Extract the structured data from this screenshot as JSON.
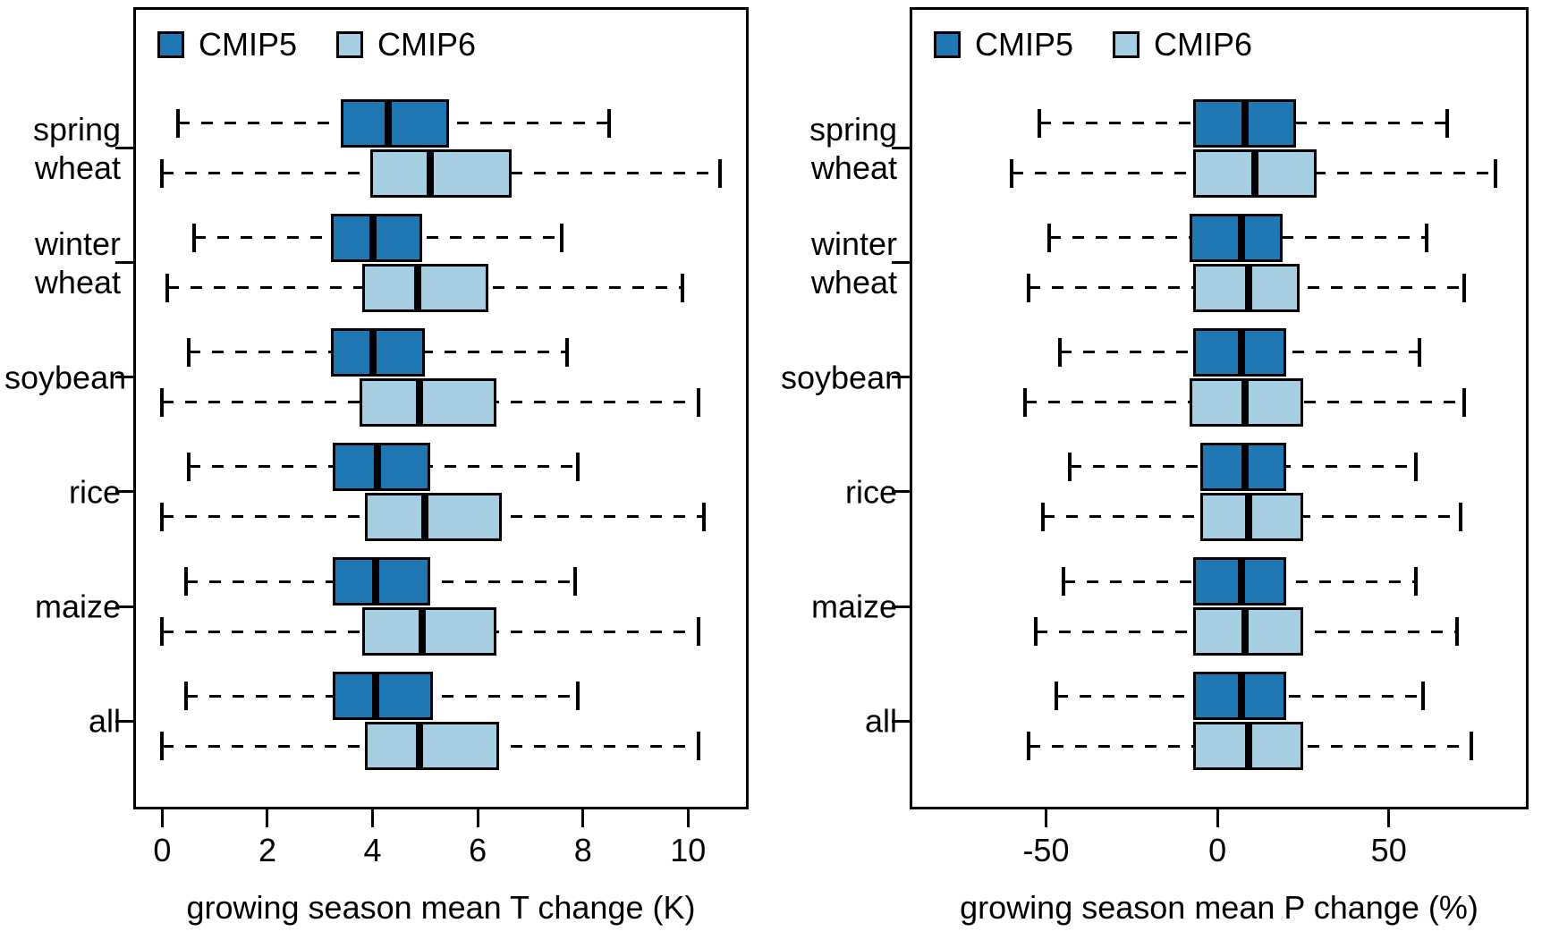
{
  "figure": {
    "legend": {
      "cmip5_label": "CMIP5",
      "cmip6_label": "CMIP6"
    },
    "colors": {
      "cmip5": "#1F78B4",
      "cmip6": "#A6CEE3",
      "line": "#000000",
      "background": "#FFFFFF"
    }
  },
  "chart_data": [
    {
      "type": "boxplot",
      "orientation": "horizontal",
      "xlabel": "growing season mean T change (K)",
      "categories": [
        "spring\nwheat",
        "winter\nwheat",
        "soybean",
        "rice",
        "maize",
        "all"
      ],
      "xlim": [
        -0.5,
        11.1
      ],
      "xticks": [
        0,
        2,
        4,
        6,
        8,
        10
      ],
      "xtick_labels": [
        "0",
        "2",
        "4",
        "6",
        "8",
        "10"
      ],
      "grid": false,
      "legend_position": "top-left",
      "series": [
        {
          "name": "CMIP5",
          "color": "#1F78B4",
          "boxes": [
            {
              "whisker_low": 0.3,
              "q1": 3.4,
              "median": 4.3,
              "q3": 5.45,
              "whisker_high": 8.5
            },
            {
              "whisker_low": 0.6,
              "q1": 3.2,
              "median": 4.0,
              "q3": 4.95,
              "whisker_high": 7.6
            },
            {
              "whisker_low": 0.5,
              "q1": 3.2,
              "median": 4.0,
              "q3": 5.0,
              "whisker_high": 7.7
            },
            {
              "whisker_low": 0.5,
              "q1": 3.25,
              "median": 4.1,
              "q3": 5.1,
              "whisker_high": 7.9
            },
            {
              "whisker_low": 0.45,
              "q1": 3.25,
              "median": 4.05,
              "q3": 5.1,
              "whisker_high": 7.85
            },
            {
              "whisker_low": 0.45,
              "q1": 3.25,
              "median": 4.05,
              "q3": 5.15,
              "whisker_high": 7.9
            }
          ]
        },
        {
          "name": "CMIP6",
          "color": "#A6CEE3",
          "boxes": [
            {
              "whisker_low": 0.0,
              "q1": 3.95,
              "median": 5.1,
              "q3": 6.65,
              "whisker_high": 10.6
            },
            {
              "whisker_low": 0.1,
              "q1": 3.8,
              "median": 4.85,
              "q3": 6.2,
              "whisker_high": 9.9
            },
            {
              "whisker_low": 0.0,
              "q1": 3.75,
              "median": 4.9,
              "q3": 6.35,
              "whisker_high": 10.2
            },
            {
              "whisker_low": 0.0,
              "q1": 3.85,
              "median": 5.0,
              "q3": 6.45,
              "whisker_high": 10.3
            },
            {
              "whisker_low": 0.0,
              "q1": 3.8,
              "median": 4.95,
              "q3": 6.35,
              "whisker_high": 10.2
            },
            {
              "whisker_low": 0.0,
              "q1": 3.85,
              "median": 4.9,
              "q3": 6.4,
              "whisker_high": 10.2
            }
          ]
        }
      ]
    },
    {
      "type": "boxplot",
      "orientation": "horizontal",
      "xlabel": "growing season mean P change (%)",
      "categories": [
        "spring\nwheat",
        "winter\nwheat",
        "soybean",
        "rice",
        "maize",
        "all"
      ],
      "xlim": [
        -89,
        90
      ],
      "xticks": [
        -50,
        0,
        50
      ],
      "xtick_labels": [
        "-50",
        "0",
        "50"
      ],
      "grid": false,
      "legend_position": "top-left",
      "series": [
        {
          "name": "CMIP5",
          "color": "#1F78B4",
          "boxes": [
            {
              "whisker_low": -52,
              "q1": -7,
              "median": 8,
              "q3": 23,
              "whisker_high": 67
            },
            {
              "whisker_low": -49,
              "q1": -8,
              "median": 7,
              "q3": 19,
              "whisker_high": 61
            },
            {
              "whisker_low": -46,
              "q1": -7,
              "median": 7,
              "q3": 20,
              "whisker_high": 59
            },
            {
              "whisker_low": -43,
              "q1": -5,
              "median": 8,
              "q3": 20,
              "whisker_high": 58
            },
            {
              "whisker_low": -45,
              "q1": -7,
              "median": 7,
              "q3": 20,
              "whisker_high": 58
            },
            {
              "whisker_low": -47,
              "q1": -7,
              "median": 7,
              "q3": 20,
              "whisker_high": 60
            }
          ]
        },
        {
          "name": "CMIP6",
          "color": "#A6CEE3",
          "boxes": [
            {
              "whisker_low": -60,
              "q1": -7,
              "median": 11,
              "q3": 29,
              "whisker_high": 81
            },
            {
              "whisker_low": -55,
              "q1": -7,
              "median": 9,
              "q3": 24,
              "whisker_high": 72
            },
            {
              "whisker_low": -56,
              "q1": -8,
              "median": 8,
              "q3": 25,
              "whisker_high": 72
            },
            {
              "whisker_low": -51,
              "q1": -5,
              "median": 9,
              "q3": 25,
              "whisker_high": 71
            },
            {
              "whisker_low": -53,
              "q1": -7,
              "median": 8,
              "q3": 25,
              "whisker_high": 70
            },
            {
              "whisker_low": -55,
              "q1": -7,
              "median": 9,
              "q3": 25,
              "whisker_high": 74
            }
          ]
        }
      ]
    }
  ]
}
